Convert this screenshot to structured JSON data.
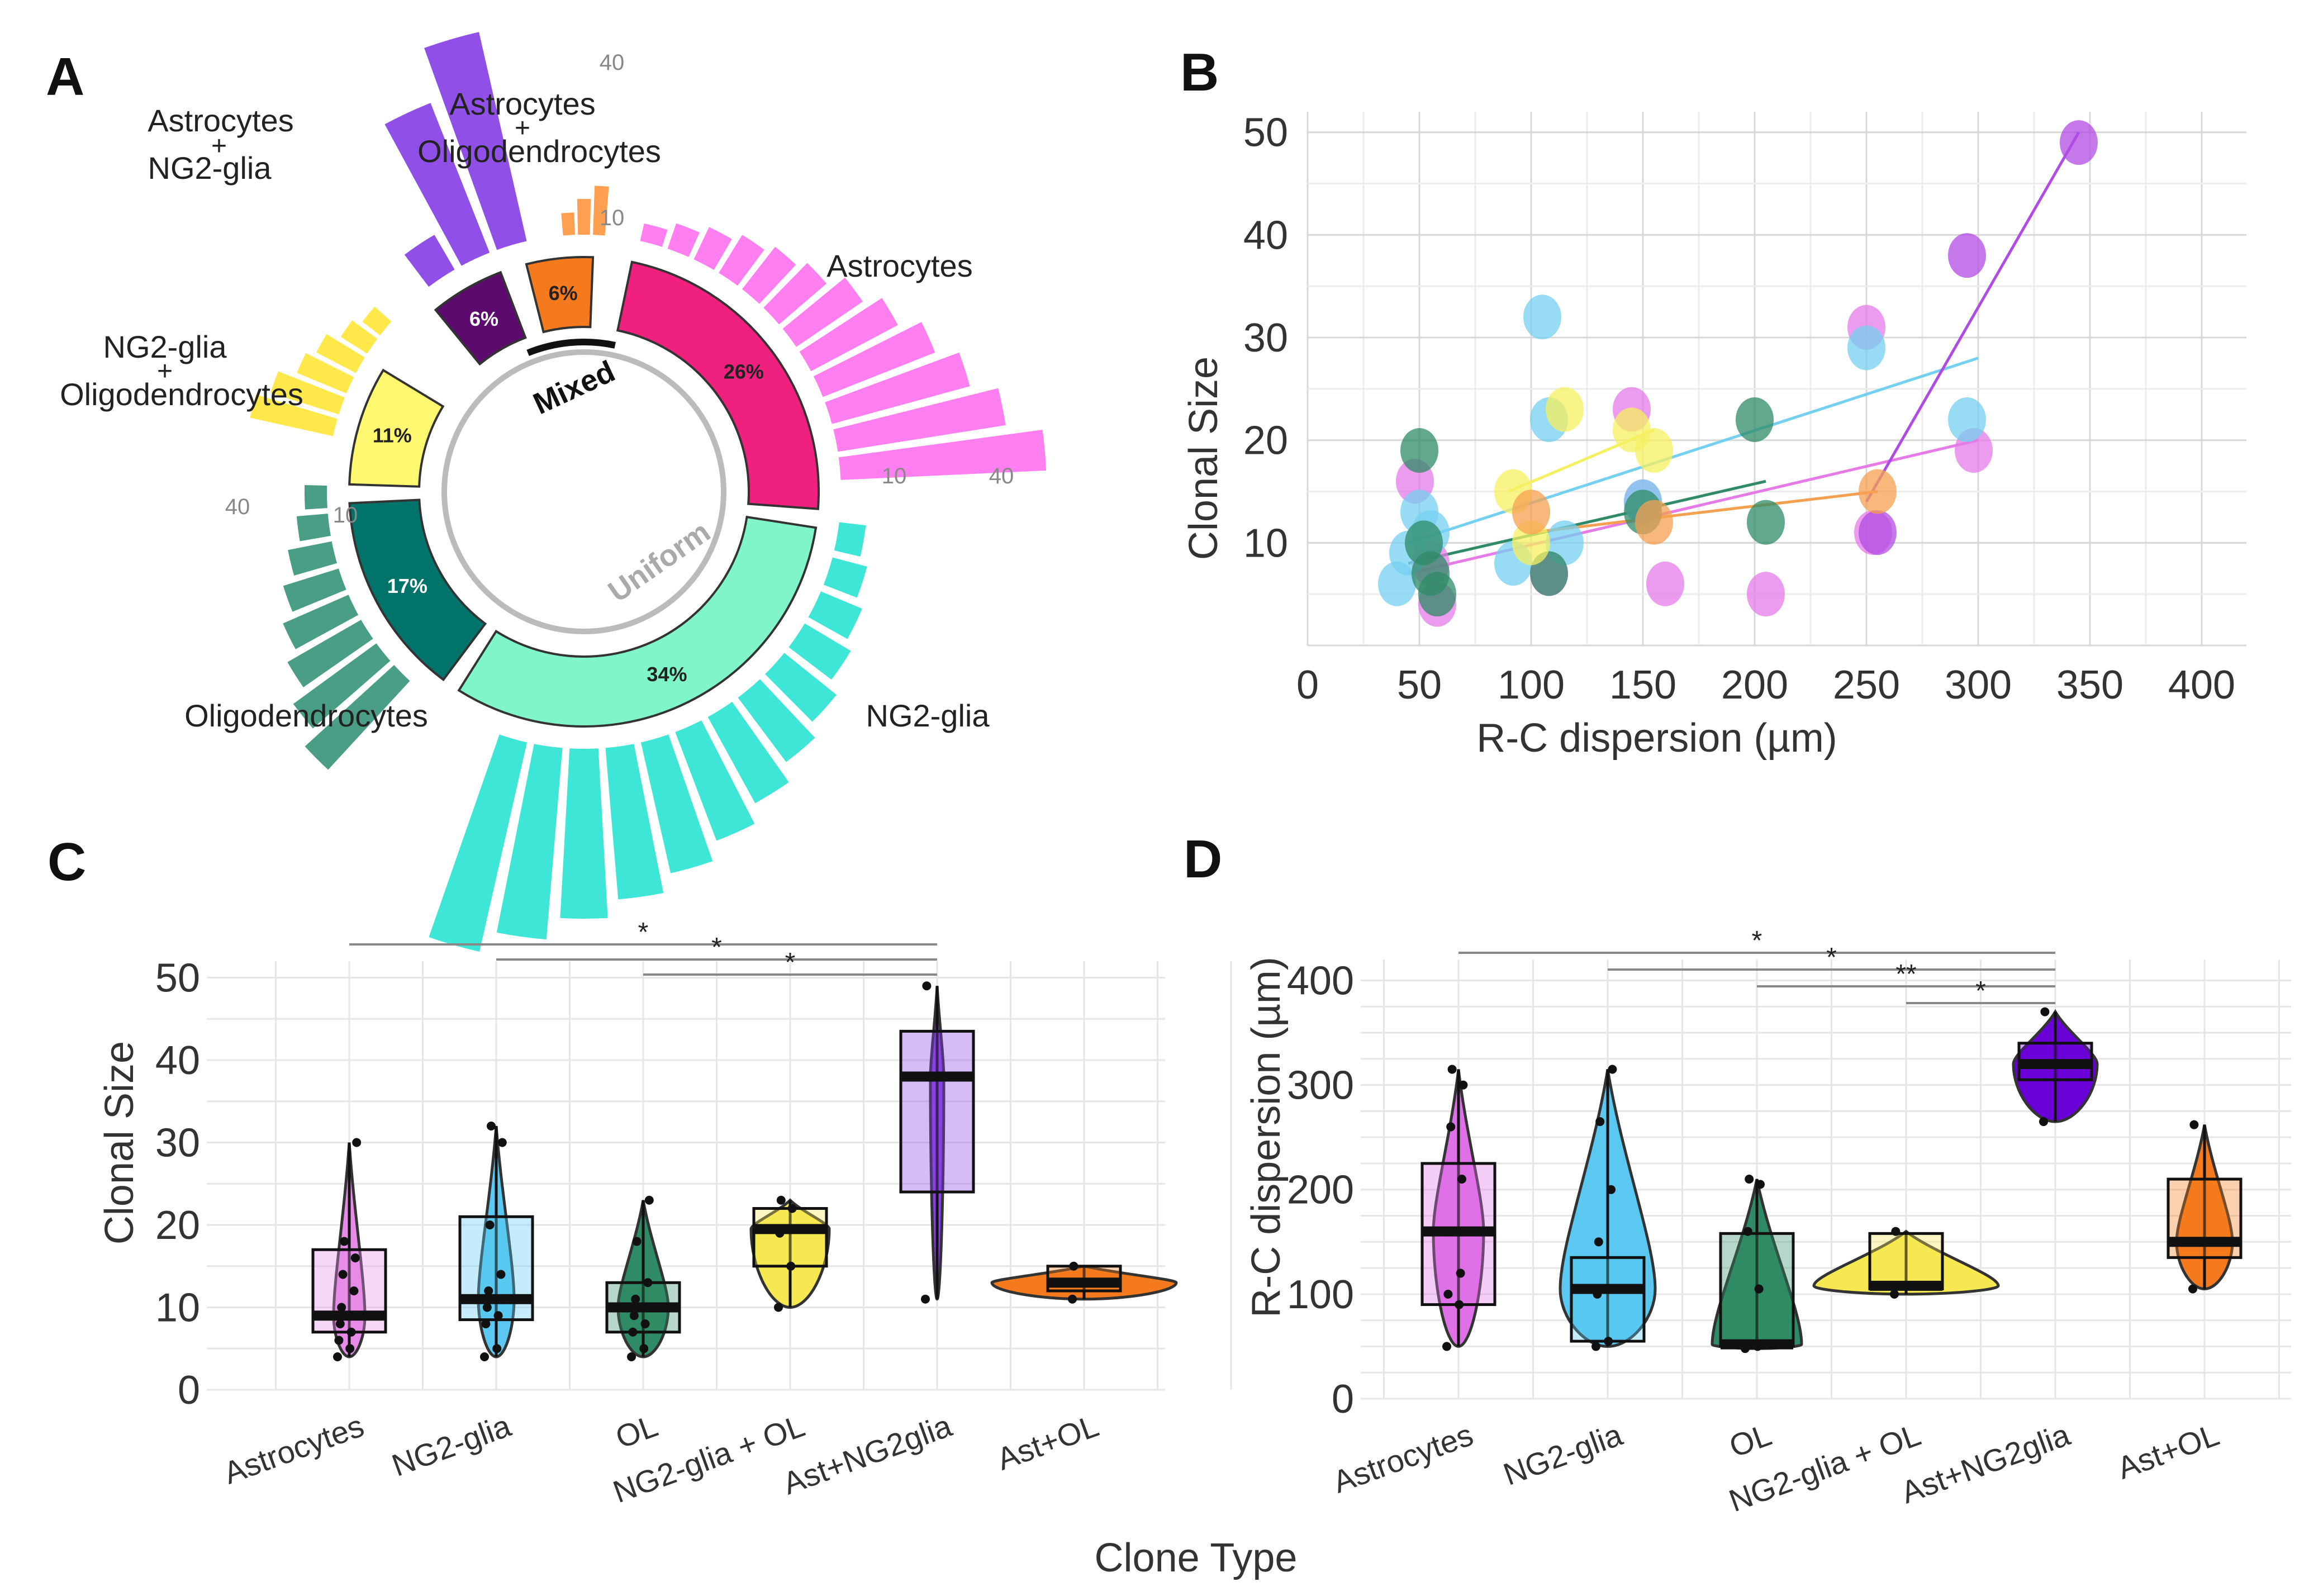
{
  "panel_labels": [
    "A",
    "B",
    "C",
    "D"
  ],
  "colors": {
    "astrocytes": "#ff7ff0",
    "astrocytes_inner": "#f0207f",
    "ng2": "#3ee6d8",
    "ng2_inner": "#7ff5c8",
    "ol": "#4a9e86",
    "ol_inner": "#00736b",
    "ng2_ol": "#ffe84a",
    "ng2_ol_inner": "#fff870",
    "ast_ng2": "#9050e8",
    "ast_ng2_inner": "#5c0a6e",
    "ast_ol": "#ffa050",
    "ast_ol_inner": "#f57a1d",
    "scatter_cyan": "#74d0f0",
    "scatter_pink": "#e67be8",
    "scatter_green": "#2e8b65",
    "scatter_yellow": "#f5f060",
    "scatter_orange": "#f5a050",
    "scatter_purple": "#b04be3",
    "box_d_purple": "#6a00d8"
  },
  "chart_data": [
    {
      "panel": "A",
      "type": "circular-bar",
      "groups": [
        {
          "name": "Astrocytes",
          "label": "Astrocytes",
          "bars": [
            4,
            6,
            8,
            10,
            12,
            14,
            18,
            22,
            27,
            32,
            38,
            46
          ]
        },
        {
          "name": "NG2-glia",
          "label": "NG2-glia",
          "bars": [
            6,
            8,
            10,
            12,
            15,
            18,
            22,
            26,
            30,
            34,
            38,
            43,
            48
          ]
        },
        {
          "name": "Oligodendrocytes",
          "label": "Oligodendrocytes",
          "bars": [
            27,
            23,
            19,
            16,
            13,
            10,
            7,
            5
          ]
        },
        {
          "name": "NG2-glia + Oligodendrocytes",
          "label_lines": [
            "NG2-glia",
            "+",
            "Oligodendrocytes"
          ],
          "bars": [
            19,
            16,
            12,
            10,
            7,
            5
          ]
        },
        {
          "name": "Astrocytes + NG2-glia",
          "label_lines": [
            "Astrocytes",
            "+",
            "NG2-glia"
          ],
          "bars": [
            9,
            36,
            48
          ]
        },
        {
          "name": "Astrocytes + Oligodendrocytes",
          "label_lines": [
            "Astrocytes",
            "+",
            "Oligodendrocytes"
          ],
          "bars": [
            5,
            8,
            11
          ]
        }
      ],
      "ring_segments": [
        {
          "group": "Astrocytes",
          "pct": "26%"
        },
        {
          "group": "NG2-glia",
          "pct": "34%"
        },
        {
          "group": "Oligodendrocytes",
          "pct": "17%"
        },
        {
          "group": "NG2-glia + Oligodendrocytes",
          "pct": "11%"
        },
        {
          "group": "Astrocytes + NG2-glia",
          "pct": "6%"
        },
        {
          "group": "Astrocytes + Oligodendrocytes",
          "pct": "6%"
        }
      ],
      "inner_labels": {
        "mixed": "Mixed",
        "uniform": "Uniform"
      },
      "scale_ticks": [
        {
          "text": "40"
        },
        {
          "text": "10"
        },
        {
          "text": "10"
        },
        {
          "text": "40"
        },
        {
          "text": "40"
        },
        {
          "text": "10"
        }
      ]
    },
    {
      "panel": "B",
      "type": "scatter",
      "xlabel": "R-C dispersion (µm)",
      "ylabel": "Clonal Size",
      "xlim": [
        0,
        420
      ],
      "ylim": [
        0,
        52
      ],
      "xticks": [
        0,
        50,
        100,
        150,
        200,
        250,
        300,
        350,
        400
      ],
      "yticks": [
        10,
        20,
        30,
        40,
        50
      ],
      "series": [
        {
          "name": "Astrocytes",
          "color": "#e67be8",
          "points": [
            [
              48,
              16
            ],
            [
              55,
              8
            ],
            [
              58,
              4
            ],
            [
              108,
              7
            ],
            [
              145,
              23
            ],
            [
              150,
              14
            ],
            [
              160,
              6
            ],
            [
              205,
              5
            ],
            [
              250,
              31
            ],
            [
              253,
              11
            ],
            [
              298,
              19
            ]
          ],
          "fit": [
            [
              45,
              7
            ],
            [
              300,
              20
            ]
          ]
        },
        {
          "name": "NG2-glia",
          "color": "#74d0f0",
          "points": [
            [
              40,
              6
            ],
            [
              45,
              9
            ],
            [
              50,
              13
            ],
            [
              55,
              11
            ],
            [
              92,
              8
            ],
            [
              105,
              32
            ],
            [
              108,
              22
            ],
            [
              115,
              10
            ],
            [
              150,
              14
            ],
            [
              250,
              29
            ],
            [
              295,
              22
            ]
          ],
          "fit": [
            [
              45,
              10
            ],
            [
              300,
              28
            ]
          ]
        },
        {
          "name": "OL",
          "color": "#2e8b65",
          "points": [
            [
              50,
              19
            ],
            [
              52,
              10
            ],
            [
              55,
              7
            ],
            [
              58,
              5
            ],
            [
              108,
              7
            ],
            [
              150,
              13
            ],
            [
              200,
              22
            ],
            [
              205,
              12
            ]
          ],
          "fit": [
            [
              45,
              8
            ],
            [
              205,
              16
            ]
          ]
        },
        {
          "name": "NG2-glia + OL",
          "color": "#f5f060",
          "points": [
            [
              92,
              15
            ],
            [
              100,
              10
            ],
            [
              115,
              23
            ],
            [
              145,
              21
            ],
            [
              155,
              19
            ]
          ],
          "fit": [
            [
              90,
              15
            ],
            [
              155,
              21
            ]
          ]
        },
        {
          "name": "Ast+NG2glia",
          "color": "#b04be3",
          "points": [
            [
              255,
              11
            ],
            [
              295,
              38
            ],
            [
              345,
              49
            ]
          ],
          "fit": [
            [
              250,
              14
            ],
            [
              345,
              50
            ]
          ]
        },
        {
          "name": "Ast+OL",
          "color": "#f5a050",
          "points": [
            [
              100,
              13
            ],
            [
              155,
              12
            ],
            [
              255,
              15
            ]
          ],
          "fit": [
            [
              100,
              11
            ],
            [
              255,
              15
            ]
          ]
        }
      ]
    },
    {
      "panel": "C",
      "type": "box-violin",
      "categories": [
        "Astrocytes",
        "NG2-glia",
        "OL",
        "NG2-glia + OL",
        "Ast+NG2glia",
        "Ast+OL"
      ],
      "xlabel": "Clone Type",
      "ylabel": "Clonal Size",
      "ylim": [
        0,
        52
      ],
      "yticks": [
        0,
        10,
        20,
        30,
        40,
        50
      ],
      "boxes": [
        {
          "q1": 7,
          "median": 9,
          "q3": 17,
          "min": 4,
          "max": 30,
          "points": [
            4,
            5,
            6,
            7,
            8,
            9,
            10,
            12,
            14,
            16,
            18,
            30
          ]
        },
        {
          "q1": 8.5,
          "median": 11,
          "q3": 21,
          "min": 4,
          "max": 32,
          "points": [
            4,
            5,
            8,
            9,
            10,
            11,
            12,
            14,
            20,
            30,
            32
          ]
        },
        {
          "q1": 7,
          "median": 10,
          "q3": 13,
          "min": 4,
          "max": 23,
          "points": [
            4,
            5,
            7,
            8,
            9,
            10,
            11,
            13,
            18,
            23
          ]
        },
        {
          "q1": 15,
          "median": 19.5,
          "q3": 22,
          "min": 10,
          "max": 23,
          "points": [
            10,
            15,
            19,
            22,
            23
          ]
        },
        {
          "q1": 24,
          "median": 38,
          "q3": 43.5,
          "min": 11,
          "max": 49,
          "points": [
            11,
            38,
            49
          ]
        },
        {
          "q1": 12,
          "median": 13,
          "q3": 15,
          "min": 11,
          "max": 15,
          "points": [
            11,
            13,
            15
          ]
        }
      ],
      "significance": [
        {
          "from": 0,
          "to": 4,
          "label": "*"
        },
        {
          "from": 1,
          "to": 4,
          "label": "*"
        },
        {
          "from": 2,
          "to": 4,
          "label": "*"
        }
      ]
    },
    {
      "panel": "D",
      "type": "box-violin",
      "categories": [
        "Astrocytes",
        "NG2-glia",
        "OL",
        "NG2-glia + OL",
        "Ast+NG2glia",
        "Ast+OL"
      ],
      "ylabel": "R-C dispersion (µm)",
      "ylim": [
        0,
        420
      ],
      "yticks": [
        0,
        100,
        200,
        300,
        400
      ],
      "boxes": [
        {
          "q1": 90,
          "median": 160,
          "q3": 225,
          "min": 50,
          "max": 315,
          "points": [
            50,
            90,
            100,
            120,
            160,
            210,
            260,
            300,
            315
          ]
        },
        {
          "q1": 55,
          "median": 105,
          "q3": 135,
          "min": 50,
          "max": 315,
          "points": [
            50,
            55,
            100,
            105,
            150,
            200,
            265,
            315
          ]
        },
        {
          "q1": 50,
          "median": 52,
          "q3": 158,
          "min": 48,
          "max": 210,
          "points": [
            48,
            50,
            52,
            105,
            160,
            205,
            210
          ]
        },
        {
          "q1": 105,
          "median": 108,
          "q3": 158,
          "min": 100,
          "max": 160,
          "points": [
            100,
            108,
            160
          ]
        },
        {
          "q1": 305,
          "median": 320,
          "q3": 340,
          "min": 265,
          "max": 370,
          "points": [
            265,
            320,
            370
          ]
        },
        {
          "q1": 135,
          "median": 150,
          "q3": 210,
          "min": 105,
          "max": 262,
          "points": [
            105,
            150,
            262
          ]
        }
      ],
      "significance": [
        {
          "from": 0,
          "to": 4,
          "label": "*"
        },
        {
          "from": 1,
          "to": 4,
          "label": "*"
        },
        {
          "from": 2,
          "to": 4,
          "label": "**"
        },
        {
          "from": 3,
          "to": 4,
          "label": "*"
        }
      ]
    }
  ]
}
